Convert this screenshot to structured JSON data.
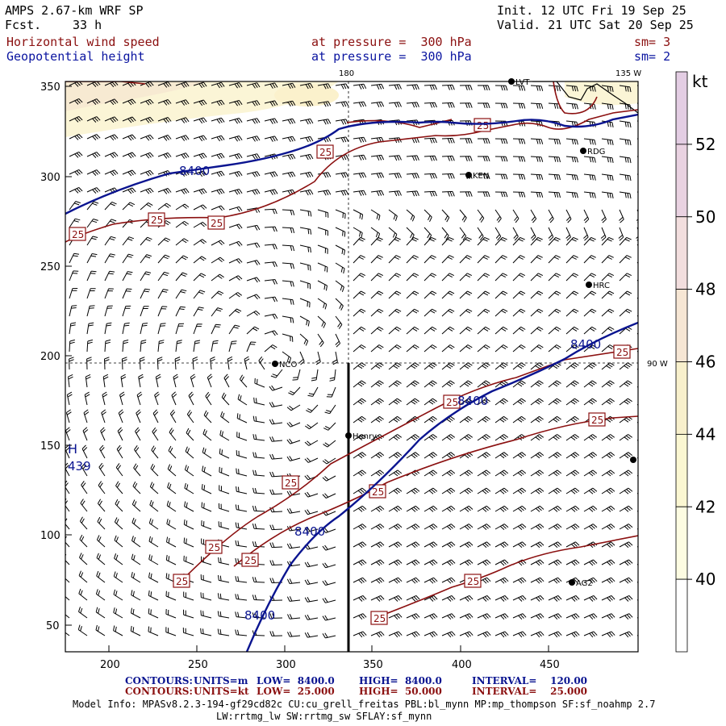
{
  "header": {
    "model": "AMPS 2.67-km WRF SP",
    "fcst_label": "Fcst.",
    "fcst_value": "33 h",
    "init": "Init. 12 UTC Fri 19 Sep 25",
    "valid": "Valid. 21 UTC Sat 20 Sep 25",
    "field1_name": "Horizontal wind speed",
    "field1_level": "at pressure =  300 hPa",
    "field1_sm": "sm= 3",
    "field2_name": "Geopotential height",
    "field2_level": "at pressure =  300 hPa",
    "field2_sm": "sm= 2"
  },
  "map": {
    "x_ticks": [
      "200",
      "250",
      "300",
      "350",
      "400",
      "450"
    ],
    "y_ticks": [
      "350",
      "300",
      "250",
      "200",
      "150",
      "100",
      "50"
    ],
    "meridian_label_top": "180",
    "meridian_label_right_top": "135 W",
    "parallel_label_right": "90 W",
    "high_marker": "H",
    "high_value": "439",
    "height_contour_label": "8400",
    "wind_contour_label": "25",
    "stations": [
      "LVT",
      "RDG",
      "KEN",
      "HRC",
      "NCO",
      "Henry",
      "AG2"
    ],
    "colors": {
      "height": "#0a1490",
      "wind": "#8b1010",
      "shade_low": "#fbf6d4",
      "shade_mid": "#f6e8c4"
    }
  },
  "colorbar": {
    "unit": "kt",
    "levels": [
      "52",
      "50",
      "48",
      "46",
      "44",
      "42",
      "40"
    ],
    "colors": [
      "#e3cde3",
      "#e9d2e1",
      "#f2dede",
      "#f6e6d4",
      "#f8f0cc",
      "#fbf7d2",
      "#fdfce2",
      "#ffffff"
    ]
  },
  "footer": {
    "c1_label": "CONTOURS:",
    "c1_units": "UNITS=m",
    "c1_low": "LOW=  8400.0",
    "c1_high": "HIGH=  8400.0",
    "c1_int": "INTERVAL=    120.00",
    "c2_label": "CONTOURS:",
    "c2_units": "UNITS=kt",
    "c2_low": "LOW=  25.000",
    "c2_high": "HIGH=  50.000",
    "c2_int": "INTERVAL=    25.000",
    "model_info1": "Model Info: MPASv8.2.3-194-gf29cd82c CU:cu_grell_freitas PBL:bl_mynn MP:mp_thompson SF:sf_noahmp 2.7",
    "model_info2": "LW:rrtmg_lw SW:rrtmg_sw SFLAY:sf_mynn"
  }
}
